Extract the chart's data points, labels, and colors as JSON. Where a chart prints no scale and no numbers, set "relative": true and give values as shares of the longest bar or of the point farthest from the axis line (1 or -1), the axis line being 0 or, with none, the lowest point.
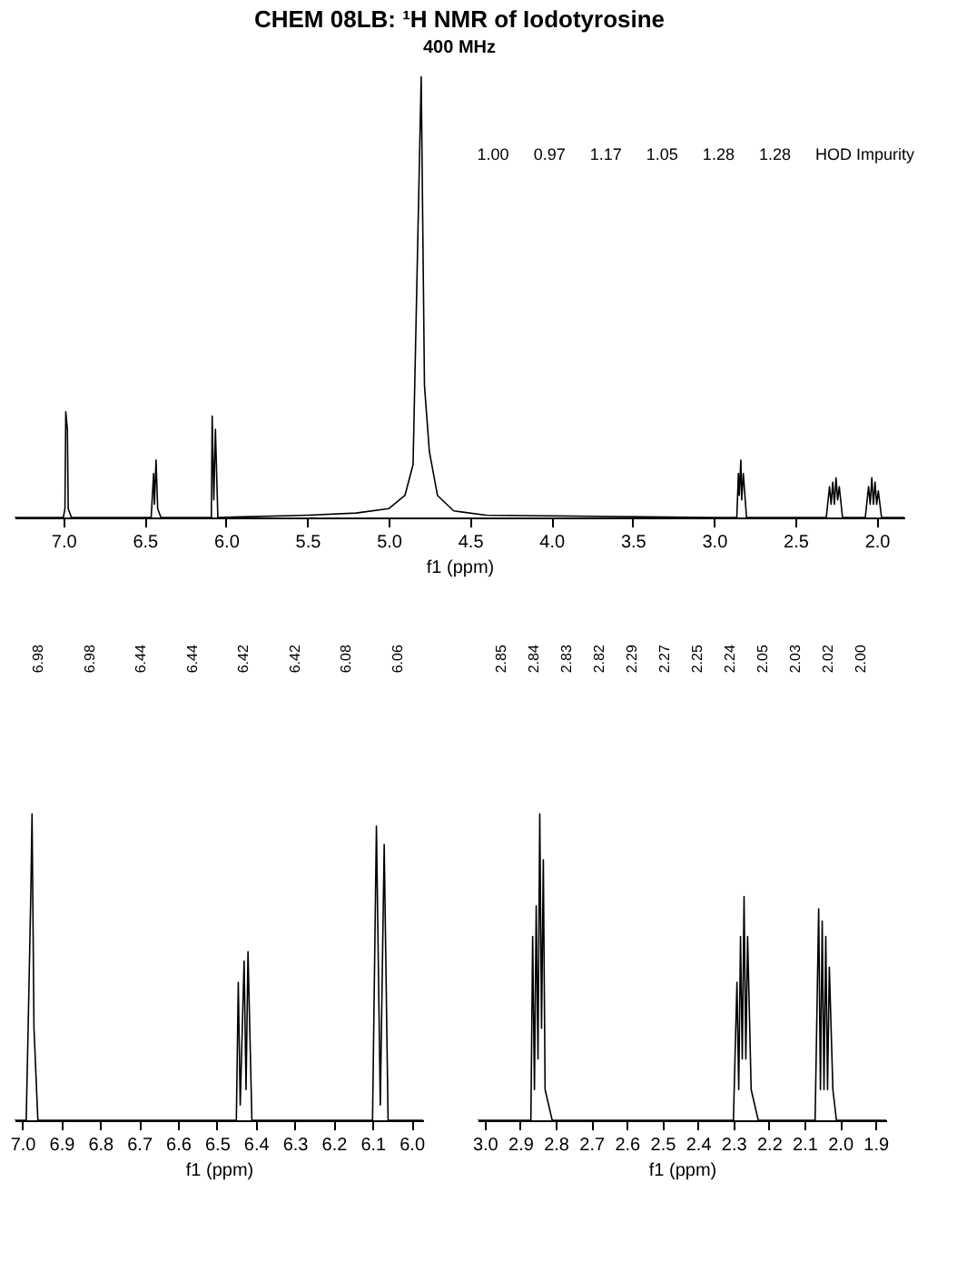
{
  "chart_data": [
    {
      "type": "line",
      "title": "CHEM 08LB: ¹H NMR of Iodotyrosine",
      "subtitle": "400 MHz",
      "xlabel": "f1 (ppm)",
      "relative": true,
      "grid": false,
      "legend": false,
      "xlim": [
        7.3,
        1.83
      ],
      "xticks": [
        {
          "value": 7,
          "label": "7.0"
        },
        {
          "value": 6.5,
          "label": "6.5"
        },
        {
          "value": 6,
          "label": "6.0"
        },
        {
          "value": 5.5,
          "label": "5.5"
        },
        {
          "value": 5,
          "label": "5.0"
        },
        {
          "value": 4.5,
          "label": "4.5"
        },
        {
          "value": 4,
          "label": "4.0"
        },
        {
          "value": 3.5,
          "label": "3.5"
        },
        {
          "value": 3,
          "label": "3.0"
        },
        {
          "value": 2.5,
          "label": "2.5"
        },
        {
          "value": 2,
          "label": "2.0"
        }
      ],
      "x": [
        7.3,
        7.0,
        6.99,
        6.985,
        6.975,
        6.97,
        6.95,
        6.46,
        6.445,
        6.44,
        6.43,
        6.42,
        6.4,
        6.09,
        6.085,
        6.075,
        6.065,
        6.05,
        5.5,
        5.2,
        5.0,
        4.9,
        4.85,
        4.8,
        4.78,
        4.75,
        4.7,
        4.6,
        4.4,
        3.0,
        2.86,
        2.85,
        2.845,
        2.835,
        2.83,
        2.82,
        2.8,
        2.31,
        2.29,
        2.28,
        2.27,
        2.26,
        2.25,
        2.24,
        2.23,
        2.21,
        2.07,
        2.05,
        2.04,
        2.03,
        2.02,
        2.01,
        2.0,
        1.99,
        1.97,
        1.83
      ],
      "series": [
        {
          "color": "#000000",
          "values": [
            0,
            0,
            0.02,
            0.24,
            0.2,
            0.02,
            0,
            0,
            0.1,
            0.03,
            0.13,
            0.02,
            0,
            0,
            0.23,
            0.04,
            0.2,
            0,
            0.005,
            0.01,
            0.02,
            0.05,
            0.12,
            1.0,
            0.3,
            0.15,
            0.05,
            0.015,
            0.005,
            0,
            0,
            0.1,
            0.05,
            0.13,
            0.04,
            0.1,
            0,
            0,
            0.07,
            0.03,
            0.08,
            0.03,
            0.09,
            0.04,
            0.07,
            0,
            0,
            0.07,
            0.03,
            0.09,
            0.03,
            0.08,
            0.03,
            0.06,
            0,
            0
          ]
        }
      ],
      "annotations": [
        "1.00",
        "0.97",
        "1.17",
        "1.05",
        "1.28",
        "1.28",
        "HOD Impurity"
      ]
    },
    {
      "type": "line",
      "xlabel": "f1 (ppm)",
      "relative": true,
      "grid": false,
      "legend": false,
      "xlim": [
        7.02,
        5.97
      ],
      "xticks": [
        {
          "value": 7,
          "label": "7.0"
        },
        {
          "value": 6.9,
          "label": "6.9"
        },
        {
          "value": 6.8,
          "label": "6.8"
        },
        {
          "value": 6.7,
          "label": "6.7"
        },
        {
          "value": 6.6,
          "label": "6.6"
        },
        {
          "value": 6.5,
          "label": "6.5"
        },
        {
          "value": 6.4,
          "label": "6.4"
        },
        {
          "value": 6.3,
          "label": "6.3"
        },
        {
          "value": 6.2,
          "label": "6.2"
        },
        {
          "value": 6.1,
          "label": "6.1"
        },
        {
          "value": 6,
          "label": "6.0"
        }
      ],
      "x": [
        7.02,
        6.99,
        6.985,
        6.978,
        6.975,
        6.97,
        6.96,
        6.45,
        6.445,
        6.44,
        6.43,
        6.425,
        6.42,
        6.41,
        6.1,
        6.09,
        6.08,
        6.07,
        6.06,
        5.97
      ],
      "series": [
        {
          "color": "#000000",
          "values": [
            0,
            0,
            0.3,
            0.75,
            1.0,
            0.3,
            0,
            0,
            0.45,
            0.05,
            0.52,
            0.1,
            0.55,
            0,
            0,
            0.96,
            0.05,
            0.9,
            0,
            0
          ]
        }
      ],
      "annotations": [
        "6.98",
        "6.98",
        "6.44",
        "6.44",
        "6.42",
        "6.42",
        "6.08",
        "6.06"
      ]
    },
    {
      "type": "line",
      "xlabel": "f1 (ppm)",
      "relative": true,
      "grid": false,
      "legend": false,
      "xlim": [
        3.02,
        1.87
      ],
      "xticks": [
        {
          "value": 3,
          "label": "3.0"
        },
        {
          "value": 2.9,
          "label": "2.9"
        },
        {
          "value": 2.8,
          "label": "2.8"
        },
        {
          "value": 2.7,
          "label": "2.7"
        },
        {
          "value": 2.6,
          "label": "2.6"
        },
        {
          "value": 2.5,
          "label": "2.5"
        },
        {
          "value": 2.4,
          "label": "2.4"
        },
        {
          "value": 2.3,
          "label": "2.3"
        },
        {
          "value": 2.2,
          "label": "2.2"
        },
        {
          "value": 2.1,
          "label": "2.1"
        },
        {
          "value": 2,
          "label": "2.0"
        },
        {
          "value": 1.9,
          "label": "1.9"
        }
      ],
      "x": [
        3.02,
        2.87,
        2.865,
        2.86,
        2.855,
        2.85,
        2.845,
        2.84,
        2.835,
        2.83,
        2.81,
        2.3,
        2.29,
        2.285,
        2.28,
        2.275,
        2.27,
        2.265,
        2.26,
        2.25,
        2.23,
        2.07,
        2.06,
        2.055,
        2.05,
        2.045,
        2.04,
        2.035,
        2.03,
        2.02,
        2.01,
        1.87
      ],
      "series": [
        {
          "color": "#000000",
          "values": [
            0,
            0,
            0.6,
            0.1,
            0.7,
            0.2,
            1.0,
            0.3,
            0.85,
            0.1,
            0,
            0,
            0.45,
            0.1,
            0.6,
            0.2,
            0.73,
            0.2,
            0.6,
            0.1,
            0,
            0,
            0.69,
            0.1,
            0.65,
            0.1,
            0.6,
            0.1,
            0.5,
            0.1,
            0,
            0
          ]
        }
      ],
      "annotations": [
        "2.85",
        "2.84",
        "2.83",
        "2.82",
        "2.29",
        "2.27",
        "2.25",
        "2.24",
        "2.05",
        "2.03",
        "2.02",
        "2.00"
      ]
    }
  ]
}
